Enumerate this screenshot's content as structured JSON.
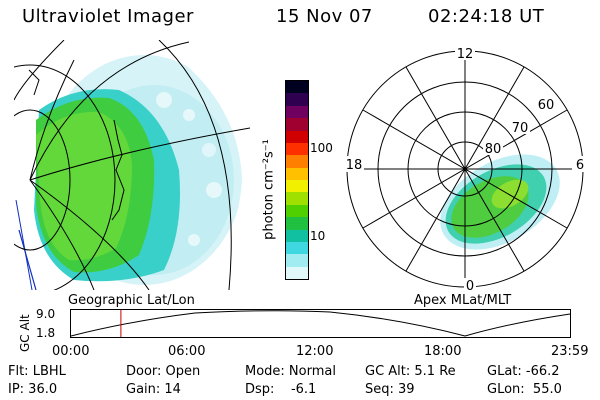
{
  "header": {
    "instrument": "Ultraviolet Imager",
    "date": "15 Nov 07",
    "time": "02:24:18 UT"
  },
  "map_left": {
    "label": "Geographic Lat/Lon"
  },
  "map_right": {
    "label": "Apex MLat/MLT",
    "mlt_labels": [
      "12",
      "18",
      "6",
      "0"
    ],
    "lat_labels": [
      "60",
      "70",
      "80"
    ]
  },
  "colorbar": {
    "unit": "photon cm⁻²s⁻¹",
    "ticks": [
      "100",
      "10"
    ],
    "colors": [
      "#000020",
      "#300050",
      "#700060",
      "#a00030",
      "#d00000",
      "#ff3000",
      "#ff8000",
      "#ffc000",
      "#f0f000",
      "#a0e000",
      "#50d000",
      "#20c040",
      "#10c0a0",
      "#40d8e0",
      "#a0ecf0",
      "#e0f8fa"
    ]
  },
  "altitude_plot": {
    "ylabel": "GC Alt",
    "yticks": [
      "9.0",
      "1.8"
    ],
    "xticks": [
      "00:00",
      "06:00",
      "12:00",
      "18:00",
      "23:59"
    ],
    "marker_time": "02:24",
    "marker_color": "#cc0000"
  },
  "info": {
    "flt": "Flt: LBHL",
    "ip": "IP: 36.0",
    "door": "Door: Open",
    "gain": "Gain: 14",
    "mode": "Mode: Normal",
    "dsp": "Dsp:    -6.1",
    "gcalt": "GC Alt: 5.1 Re",
    "seq": "Seq: 39",
    "glat": "GLat: -66.2",
    "glon": "GLon:  55.0"
  }
}
